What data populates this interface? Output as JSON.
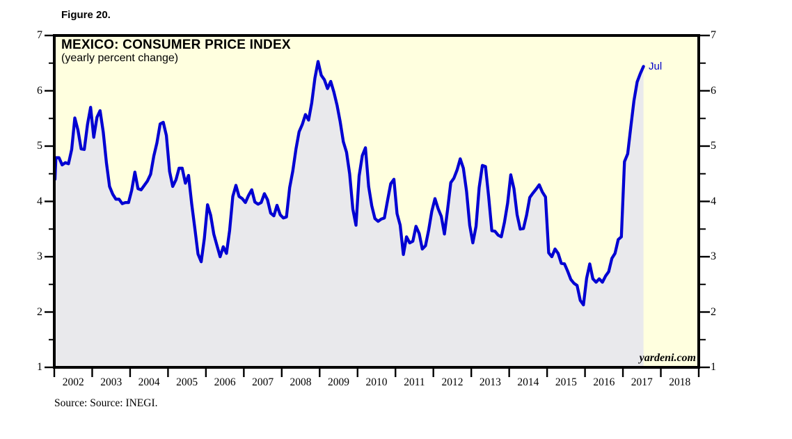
{
  "figure_label": "Figure 20.",
  "header": {
    "title": "MEXICO: CONSUMER PRICE INDEX",
    "subtitle": "(yearly percent change)"
  },
  "annotation": {
    "last_point_label": "Jul"
  },
  "watermark": "yardeni.com",
  "source_note": "Source: Source: INEGI.",
  "colors": {
    "plot_background": "#FFFFDF",
    "area_fill": "#E9E9EC",
    "line": "#0000D2",
    "frame": "#000000",
    "annotation_text": "#0000C8",
    "text": "#000000"
  },
  "chart_data": {
    "type": "line",
    "title": "MEXICO: CONSUMER PRICE INDEX",
    "subtitle": "(yearly percent change)",
    "xlabel": "",
    "ylabel": "",
    "ylim": [
      1,
      7
    ],
    "y_ticks": [
      1,
      2,
      3,
      4,
      5,
      6,
      7
    ],
    "y_minor_ticks": [
      1.5,
      2.5,
      3.5,
      4.5,
      5.5,
      6.5
    ],
    "x_tick_years": [
      2002,
      2003,
      2004,
      2005,
      2006,
      2007,
      2008,
      2009,
      2010,
      2011,
      2012,
      2013,
      2014,
      2015,
      2016,
      2017,
      2018
    ],
    "x_axis_span_years": [
      2002,
      2019
    ],
    "grid": "off",
    "legend": "none",
    "annotations": [
      {
        "text": "Jul",
        "x": "2017-07",
        "y": 6.44
      }
    ],
    "series": [
      {
        "name": "Mexico CPI yearly percent change",
        "start": "2001-12",
        "frequency": "monthly",
        "values": [
          4.4,
          4.79,
          4.79,
          4.66,
          4.7,
          4.68,
          4.94,
          5.51,
          5.29,
          4.95,
          4.94,
          5.39,
          5.7,
          5.16,
          5.52,
          5.64,
          5.25,
          4.7,
          4.27,
          4.13,
          4.04,
          4.04,
          3.96,
          3.98,
          3.98,
          4.2,
          4.53,
          4.23,
          4.21,
          4.29,
          4.37,
          4.49,
          4.82,
          5.06,
          5.4,
          5.43,
          5.19,
          4.54,
          4.27,
          4.39,
          4.6,
          4.6,
          4.33,
          4.47,
          3.95,
          3.51,
          3.05,
          2.91,
          3.33,
          3.94,
          3.75,
          3.41,
          3.2,
          3.0,
          3.18,
          3.06,
          3.47,
          4.09,
          4.29,
          4.09,
          4.05,
          3.98,
          4.11,
          4.21,
          3.99,
          3.95,
          3.98,
          4.14,
          4.03,
          3.79,
          3.74,
          3.93,
          3.76,
          3.7,
          3.72,
          4.25,
          4.55,
          4.95,
          5.26,
          5.39,
          5.57,
          5.47,
          5.78,
          6.23,
          6.53,
          6.28,
          6.2,
          6.04,
          6.17,
          5.98,
          5.74,
          5.44,
          5.08,
          4.89,
          4.5,
          3.86,
          3.57,
          4.46,
          4.83,
          4.97,
          4.27,
          3.92,
          3.69,
          3.64,
          3.68,
          3.7,
          4.02,
          4.32,
          4.4,
          3.78,
          3.57,
          3.04,
          3.36,
          3.25,
          3.28,
          3.55,
          3.42,
          3.14,
          3.2,
          3.48,
          3.82,
          4.05,
          3.87,
          3.73,
          3.41,
          3.85,
          4.34,
          4.42,
          4.57,
          4.77,
          4.6,
          4.18,
          3.57,
          3.25,
          3.55,
          4.25,
          4.65,
          4.63,
          4.09,
          3.47,
          3.46,
          3.39,
          3.36,
          3.62,
          3.97,
          4.48,
          4.23,
          3.76,
          3.5,
          3.51,
          3.75,
          4.07,
          4.15,
          4.22,
          4.3,
          4.17,
          4.08,
          3.07,
          3.0,
          3.14,
          3.06,
          2.88,
          2.87,
          2.74,
          2.59,
          2.52,
          2.48,
          2.21,
          2.13,
          2.61,
          2.87,
          2.6,
          2.54,
          2.6,
          2.54,
          2.65,
          2.73,
          2.97,
          3.06,
          3.31,
          3.36,
          4.72,
          4.86,
          5.35,
          5.82,
          6.16,
          6.31,
          6.44
        ]
      }
    ]
  }
}
